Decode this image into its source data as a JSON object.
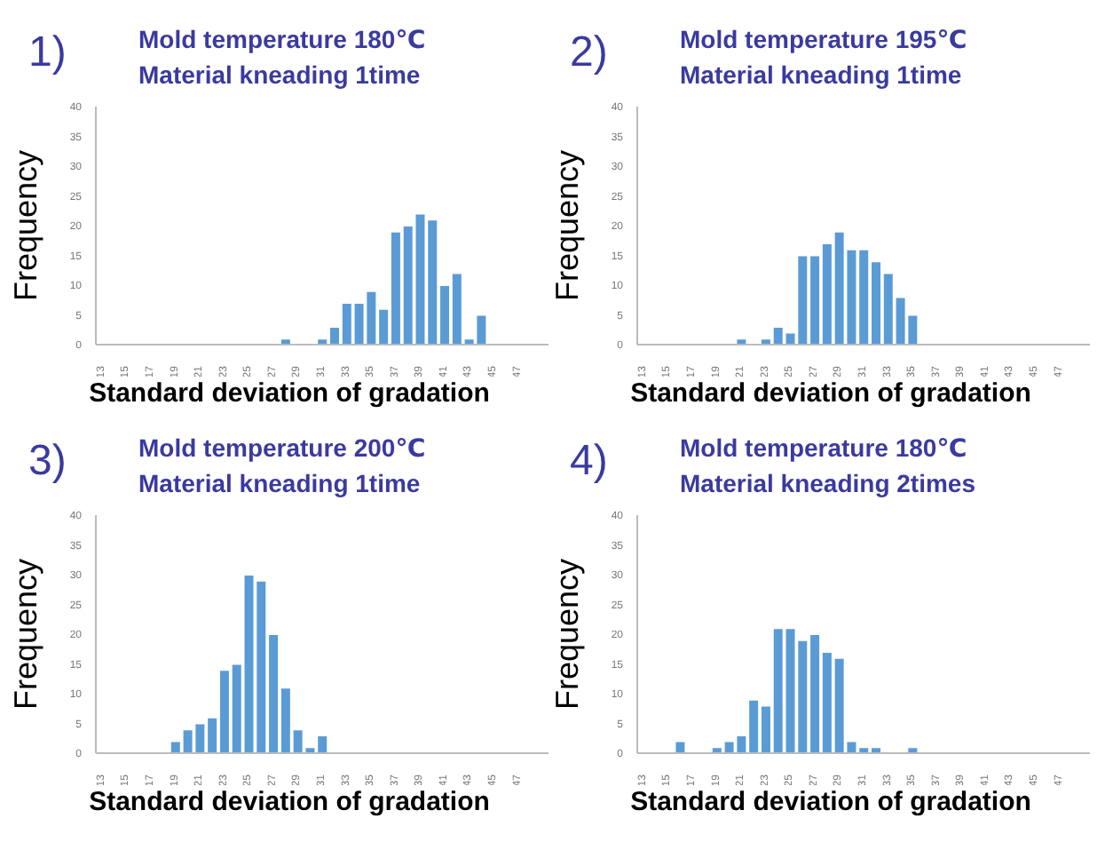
{
  "chart_data": [
    {
      "type": "bar",
      "title": "Mold temperature 180℃",
      "subtitle": "Material kneading 1time",
      "annotations": [
        "1)"
      ],
      "xlabel": "Standard deviation of gradation",
      "ylabel": "Frequency",
      "categories": [
        "13",
        null,
        "15",
        null,
        "17",
        null,
        "19",
        null,
        "21",
        null,
        "23",
        null,
        "25",
        null,
        "27",
        null,
        "29",
        null,
        "31",
        null,
        "33",
        null,
        "35",
        null,
        "37",
        null,
        "39",
        null,
        "41",
        null,
        "43",
        null,
        "45",
        null,
        "47",
        null,
        null
      ],
      "series": [
        {
          "color": "#5b9bd5",
          "values": [
            0,
            0,
            0,
            0,
            0,
            0,
            0,
            0,
            0,
            0,
            0,
            0,
            0,
            0,
            0,
            1,
            0,
            0,
            1,
            3,
            7,
            7,
            9,
            6,
            19,
            20,
            22,
            21,
            10,
            12,
            1,
            5,
            0,
            0,
            0,
            0,
            0
          ]
        }
      ],
      "ylim": [
        0,
        40
      ],
      "yticks": [
        0,
        5,
        10,
        15,
        20,
        25,
        30,
        35,
        40
      ]
    },
    {
      "type": "bar",
      "title": "Mold temperature 195℃",
      "subtitle": "Material kneading 1time",
      "annotations": [
        "2)"
      ],
      "xlabel": "Standard deviation of gradation",
      "ylabel": "Frequency",
      "categories": [
        "13",
        null,
        "15",
        null,
        "17",
        null,
        "19",
        null,
        "21",
        null,
        "23",
        null,
        "25",
        null,
        "27",
        null,
        "29",
        null,
        "31",
        null,
        "33",
        null,
        "35",
        null,
        "37",
        null,
        "39",
        null,
        "41",
        null,
        "43",
        null,
        "45",
        null,
        "47",
        null,
        null
      ],
      "series": [
        {
          "color": "#5b9bd5",
          "values": [
            0,
            0,
            0,
            0,
            0,
            0,
            0,
            0,
            1,
            0,
            1,
            3,
            2,
            15,
            15,
            17,
            19,
            16,
            16,
            14,
            12,
            8,
            5,
            0,
            0,
            0,
            0,
            0,
            0,
            0,
            0,
            0,
            0,
            0,
            0,
            0,
            0
          ]
        }
      ],
      "ylim": [
        0,
        40
      ],
      "yticks": [
        0,
        5,
        10,
        15,
        20,
        25,
        30,
        35,
        40
      ]
    },
    {
      "type": "bar",
      "title": "Mold temperature 200℃",
      "subtitle": "Material kneading 1time",
      "annotations": [
        "3)"
      ],
      "xlabel": "Standard deviation of gradation",
      "ylabel": "Frequency",
      "categories": [
        "13",
        null,
        "15",
        null,
        "17",
        null,
        "19",
        null,
        "21",
        null,
        "23",
        null,
        "25",
        null,
        "27",
        null,
        "29",
        null,
        "31",
        null,
        "33",
        null,
        "35",
        null,
        "37",
        null,
        "39",
        null,
        "41",
        null,
        "43",
        null,
        "45",
        null,
        "47",
        null,
        null
      ],
      "series": [
        {
          "color": "#5b9bd5",
          "values": [
            0,
            0,
            0,
            0,
            0,
            0,
            2,
            4,
            5,
            6,
            14,
            15,
            30,
            29,
            20,
            11,
            4,
            1,
            3,
            0,
            0,
            0,
            0,
            0,
            0,
            0,
            0,
            0,
            0,
            0,
            0,
            0,
            0,
            0,
            0,
            0,
            0
          ]
        }
      ],
      "ylim": [
        0,
        40
      ],
      "yticks": [
        0,
        5,
        10,
        15,
        20,
        25,
        30,
        35,
        40
      ]
    },
    {
      "type": "bar",
      "title": "Mold temperature 180℃",
      "subtitle": "Material kneading 2times",
      "annotations": [
        "4)"
      ],
      "xlabel": "Standard deviation of gradation",
      "ylabel": "Frequency",
      "categories": [
        "13",
        null,
        "15",
        null,
        "17",
        null,
        "19",
        null,
        "21",
        null,
        "23",
        null,
        "25",
        null,
        "27",
        null,
        "29",
        null,
        "31",
        null,
        "33",
        null,
        "35",
        null,
        "37",
        null,
        "39",
        null,
        "41",
        null,
        "43",
        null,
        "45",
        null,
        "47",
        null,
        null
      ],
      "series": [
        {
          "color": "#5b9bd5",
          "values": [
            0,
            0,
            0,
            2,
            0,
            0,
            1,
            2,
            3,
            9,
            8,
            21,
            21,
            19,
            20,
            17,
            16,
            2,
            1,
            1,
            0,
            0,
            1,
            0,
            0,
            0,
            0,
            0,
            0,
            0,
            0,
            0,
            0,
            0,
            0,
            0,
            0
          ]
        }
      ],
      "ylim": [
        0,
        40
      ],
      "yticks": [
        0,
        5,
        10,
        15,
        20,
        25,
        30,
        35,
        40
      ]
    }
  ]
}
